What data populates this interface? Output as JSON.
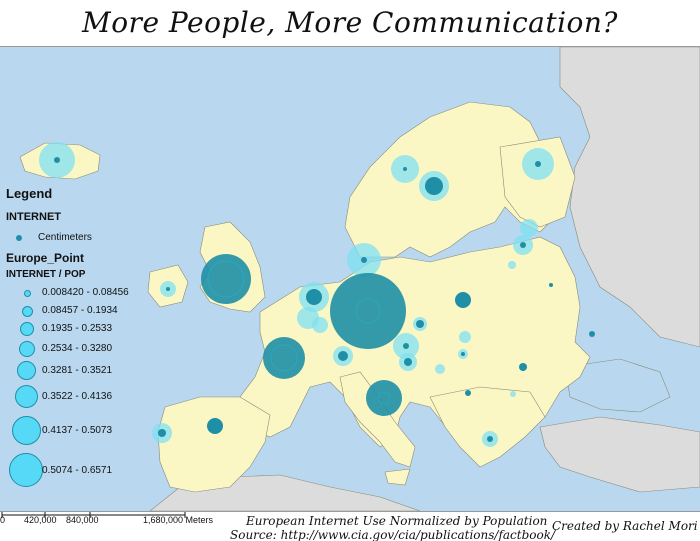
{
  "title": "More People, More Communication?",
  "colors": {
    "sea": "#b9d8ef",
    "land_europe": "#fbf7c5",
    "land_other": "#dcdcdc",
    "border": "#8a8a7a",
    "symbol_fill": "#1e8fa6",
    "symbol_light": "#7fe0f2",
    "legend_dot": "#56d9f7"
  },
  "legend": {
    "title": "Legend",
    "layer1": "INTERNET",
    "layer1_item": "Centimeters",
    "layer2": "Europe_Point",
    "layer2_field": "INTERNET / POP",
    "classes": [
      "0.008420 - 0.08456",
      "0.08457 - 0.1934",
      "0.1935 - 0.2533",
      "0.2534 - 0.3280",
      "0.3281 - 0.3521",
      "0.3522 - 0.4136",
      "0.4137 - 0.5073",
      "0.5074 - 0.6571"
    ]
  },
  "scale": {
    "labels": [
      "0",
      "420,000",
      "840,000",
      "1,680,000 Meters"
    ]
  },
  "footer": {
    "line1": "European Internet Use Normalized by Population",
    "line2": "Source: http://www.cia.gov/cia/publications/factbook/",
    "credit": "Created by Rachel Mori"
  }
}
